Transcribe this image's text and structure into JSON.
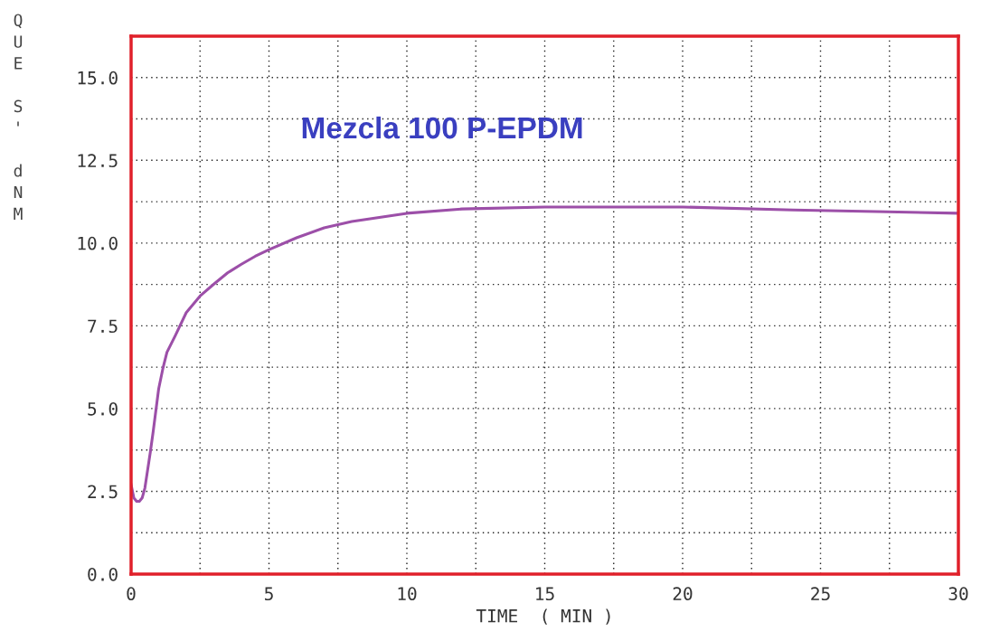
{
  "chart_data": {
    "type": "line",
    "title": "Mezcla 100 P-EPDM",
    "xlabel": "TIME  ( MIN )",
    "ylabel": "QUE S' dNM",
    "series": [
      {
        "color": "#9c4fa8",
        "x": [
          0,
          0.1,
          0.2,
          0.3,
          0.4,
          0.5,
          0.7,
          0.8,
          1.0,
          1.15,
          1.3,
          1.6,
          2,
          2.5,
          3,
          3.5,
          4,
          4.5,
          5,
          6,
          7,
          8,
          10,
          12,
          15,
          20,
          24,
          27,
          30
        ],
        "values": [
          2.7,
          2.3,
          2.2,
          2.2,
          2.3,
          2.6,
          3.7,
          4.3,
          5.6,
          6.2,
          6.7,
          7.2,
          7.9,
          8.4,
          8.76,
          9.1,
          9.36,
          9.6,
          9.8,
          10.16,
          10.46,
          10.65,
          10.9,
          11.03,
          11.09,
          11.09,
          11.0,
          10.95,
          10.9
        ]
      }
    ],
    "xlim": [
      0,
      30
    ],
    "ylim": [
      0,
      16.25
    ],
    "xticks": [
      0,
      {
        "value": 2.5,
        "label": null
      },
      5,
      {
        "value": 7.5,
        "label": null
      },
      10,
      {
        "value": 12.5,
        "label": null
      },
      15,
      {
        "value": 17.5,
        "label": null
      },
      20,
      {
        "value": 22.5,
        "label": null
      },
      25,
      {
        "value": 27.5,
        "label": null
      },
      30
    ],
    "yticks": [
      {
        "value": 0,
        "label": "0.0"
      },
      {
        "value": 1.25,
        "label": null
      },
      {
        "value": 2.5,
        "label": "2.5"
      },
      {
        "value": 3.75,
        "label": null
      },
      {
        "value": 5,
        "label": "5.0"
      },
      {
        "value": 6.25,
        "label": null
      },
      {
        "value": 7.5,
        "label": "7.5"
      },
      {
        "value": 8.75,
        "label": null
      },
      {
        "value": 10,
        "label": "10.0"
      },
      {
        "value": 11.25,
        "label": null
      },
      {
        "value": 12.5,
        "label": "12.5"
      },
      {
        "value": 13.75,
        "label": null
      },
      {
        "value": 15,
        "label": "15.0"
      },
      {
        "value": 16.25,
        "label": null
      }
    ],
    "grid": true,
    "line_style": "solid",
    "marker": "none"
  }
}
